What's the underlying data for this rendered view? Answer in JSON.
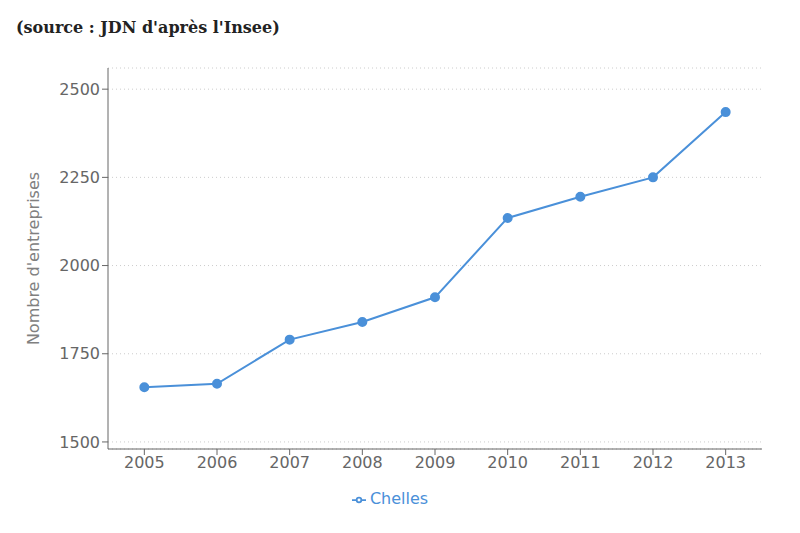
{
  "chart_data": {
    "type": "line",
    "title": "(source : JDN d'après l'Insee)",
    "ylabel": "Nombre d'entreprises",
    "x": [
      2005,
      2006,
      2007,
      2008,
      2009,
      2010,
      2011,
      2012,
      2013
    ],
    "series": [
      {
        "name": "Chelles",
        "color": "#4a90d9",
        "marker": "circle",
        "values": [
          1655,
          1665,
          1790,
          1840,
          1910,
          2135,
          2195,
          2250,
          2435
        ]
      }
    ],
    "xlim": [
      2004.5,
      2013.5
    ],
    "xticks": [
      2005,
      2006,
      2007,
      2008,
      2009,
      2010,
      2011,
      2012,
      2013
    ],
    "ylim": [
      1480,
      2560
    ],
    "yticks": [
      1500,
      1750,
      2000,
      2250,
      2500
    ],
    "grid": true,
    "legend": "bottom"
  }
}
